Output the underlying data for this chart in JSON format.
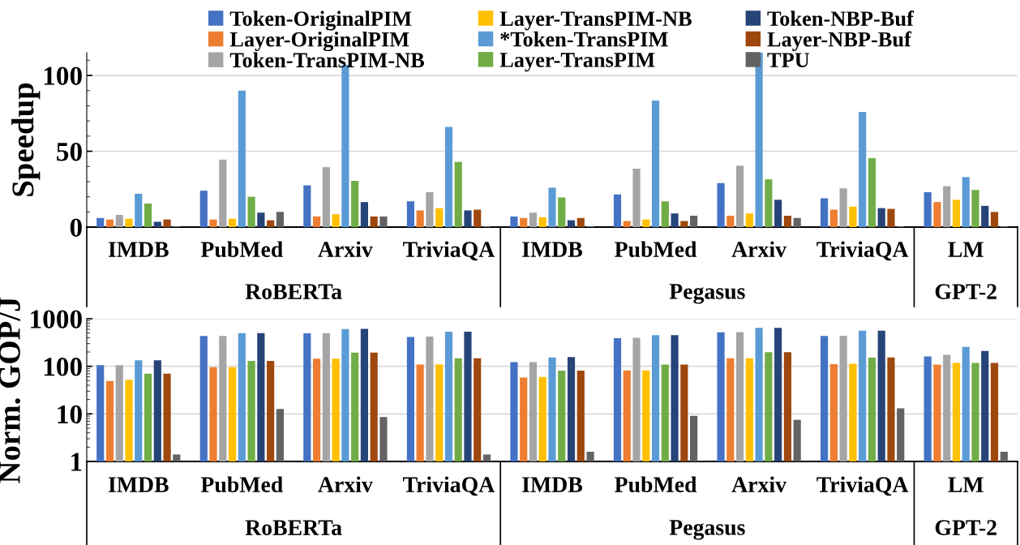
{
  "chart_data": [
    {
      "type": "bar",
      "ylabel": "Speedup",
      "categories": [
        "IMDB",
        "PubMed",
        "Arxiv",
        "TriviaQA",
        "IMDB",
        "PubMed",
        "Arxiv",
        "TriviaQA",
        "LM"
      ],
      "annotations": [
        "RoBERTa",
        "Pegasus",
        "GPT-2"
      ],
      "ylim": [
        0,
        115
      ],
      "yticks": [
        0,
        50,
        100
      ],
      "grid": "y",
      "legend": "top",
      "series": [
        {
          "name": "Token-OriginalPIM",
          "color": "#4472c4",
          "values": [
            6,
            24,
            27.5,
            17,
            7,
            21.5,
            29,
            19,
            23
          ]
        },
        {
          "name": "Layer-OriginalPIM",
          "color": "#ed7d31",
          "values": [
            5,
            5,
            7,
            11,
            6,
            4,
            7.5,
            11.5,
            16.5
          ]
        },
        {
          "name": "Token-TransPIM-NB",
          "color": "#a5a5a5",
          "values": [
            8,
            44.5,
            39.5,
            23,
            9.5,
            38.5,
            40.5,
            25.5,
            27
          ]
        },
        {
          "name": "Layer-TransPIM-NB",
          "color": "#ffc000",
          "values": [
            5.5,
            5.5,
            8.5,
            12.5,
            6.5,
            5,
            9,
            13.5,
            18
          ]
        },
        {
          "name": "*Token-TransPIM",
          "color": "#5b9bd5",
          "values": [
            22,
            90,
            107,
            66,
            26,
            83.5,
            115,
            76,
            33
          ]
        },
        {
          "name": "Layer-TransPIM",
          "color": "#70ad47",
          "values": [
            15.5,
            20,
            30.5,
            43,
            19.5,
            17,
            31.5,
            45.5,
            24.5
          ]
        },
        {
          "name": "Token-NBP-Buf",
          "color": "#264478",
          "values": [
            3.5,
            9.5,
            16.5,
            11,
            4.5,
            9,
            18,
            12.5,
            14
          ]
        },
        {
          "name": "Layer-NBP-Buf",
          "color": "#9e480e",
          "values": [
            5,
            4.5,
            7,
            11.5,
            6,
            4,
            7.5,
            12,
            10
          ]
        },
        {
          "name": "TPU",
          "color": "#636363",
          "values": [
            0.5,
            10,
            7,
            0.5,
            0.6,
            7.5,
            6,
            0.5,
            0.6
          ]
        }
      ]
    },
    {
      "type": "bar",
      "ylabel": "Norm. GOP/J",
      "categories": [
        "IMDB",
        "PubMed",
        "Arxiv",
        "TriviaQA",
        "IMDB",
        "PubMed",
        "Arxiv",
        "TriviaQA",
        "LM"
      ],
      "annotations": [
        "RoBERTa",
        "Pegasus",
        "GPT-2"
      ],
      "log": true,
      "ylim": [
        1,
        1000
      ],
      "yticks": [
        1,
        10,
        100,
        1000
      ],
      "grid": "y",
      "series": [
        {
          "color": "#4472c4",
          "values": [
            106,
            436,
            492,
            415,
            122,
            390,
            517,
            436,
            162
          ]
        },
        {
          "color": "#ed7d31",
          "values": [
            49,
            96,
            145,
            109,
            58,
            82,
            147,
            111,
            109
          ]
        },
        {
          "color": "#a5a5a5",
          "values": [
            106,
            436,
            500,
            420,
            122,
            397,
            525,
            438,
            175
          ]
        },
        {
          "color": "#ffc000",
          "values": [
            52,
            96,
            145,
            110,
            60,
            82,
            147,
            113,
            118
          ]
        },
        {
          "color": "#5b9bd5",
          "values": [
            134,
            500,
            605,
            535,
            154,
            450,
            645,
            560,
            255
          ]
        },
        {
          "color": "#70ad47",
          "values": [
            70,
            130,
            195,
            147,
            81,
            109,
            198,
            152,
            118
          ]
        },
        {
          "color": "#264478",
          "values": [
            134,
            500,
            610,
            535,
            157,
            450,
            645,
            560,
            211
          ]
        },
        {
          "color": "#9e480e",
          "values": [
            70,
            130,
            195,
            147,
            81,
            109,
            198,
            154,
            118
          ]
        },
        {
          "color": "#636363",
          "values": [
            1.4,
            12.7,
            8.6,
            1.4,
            1.6,
            9.1,
            7.5,
            13.1,
            1.6
          ]
        }
      ]
    }
  ]
}
